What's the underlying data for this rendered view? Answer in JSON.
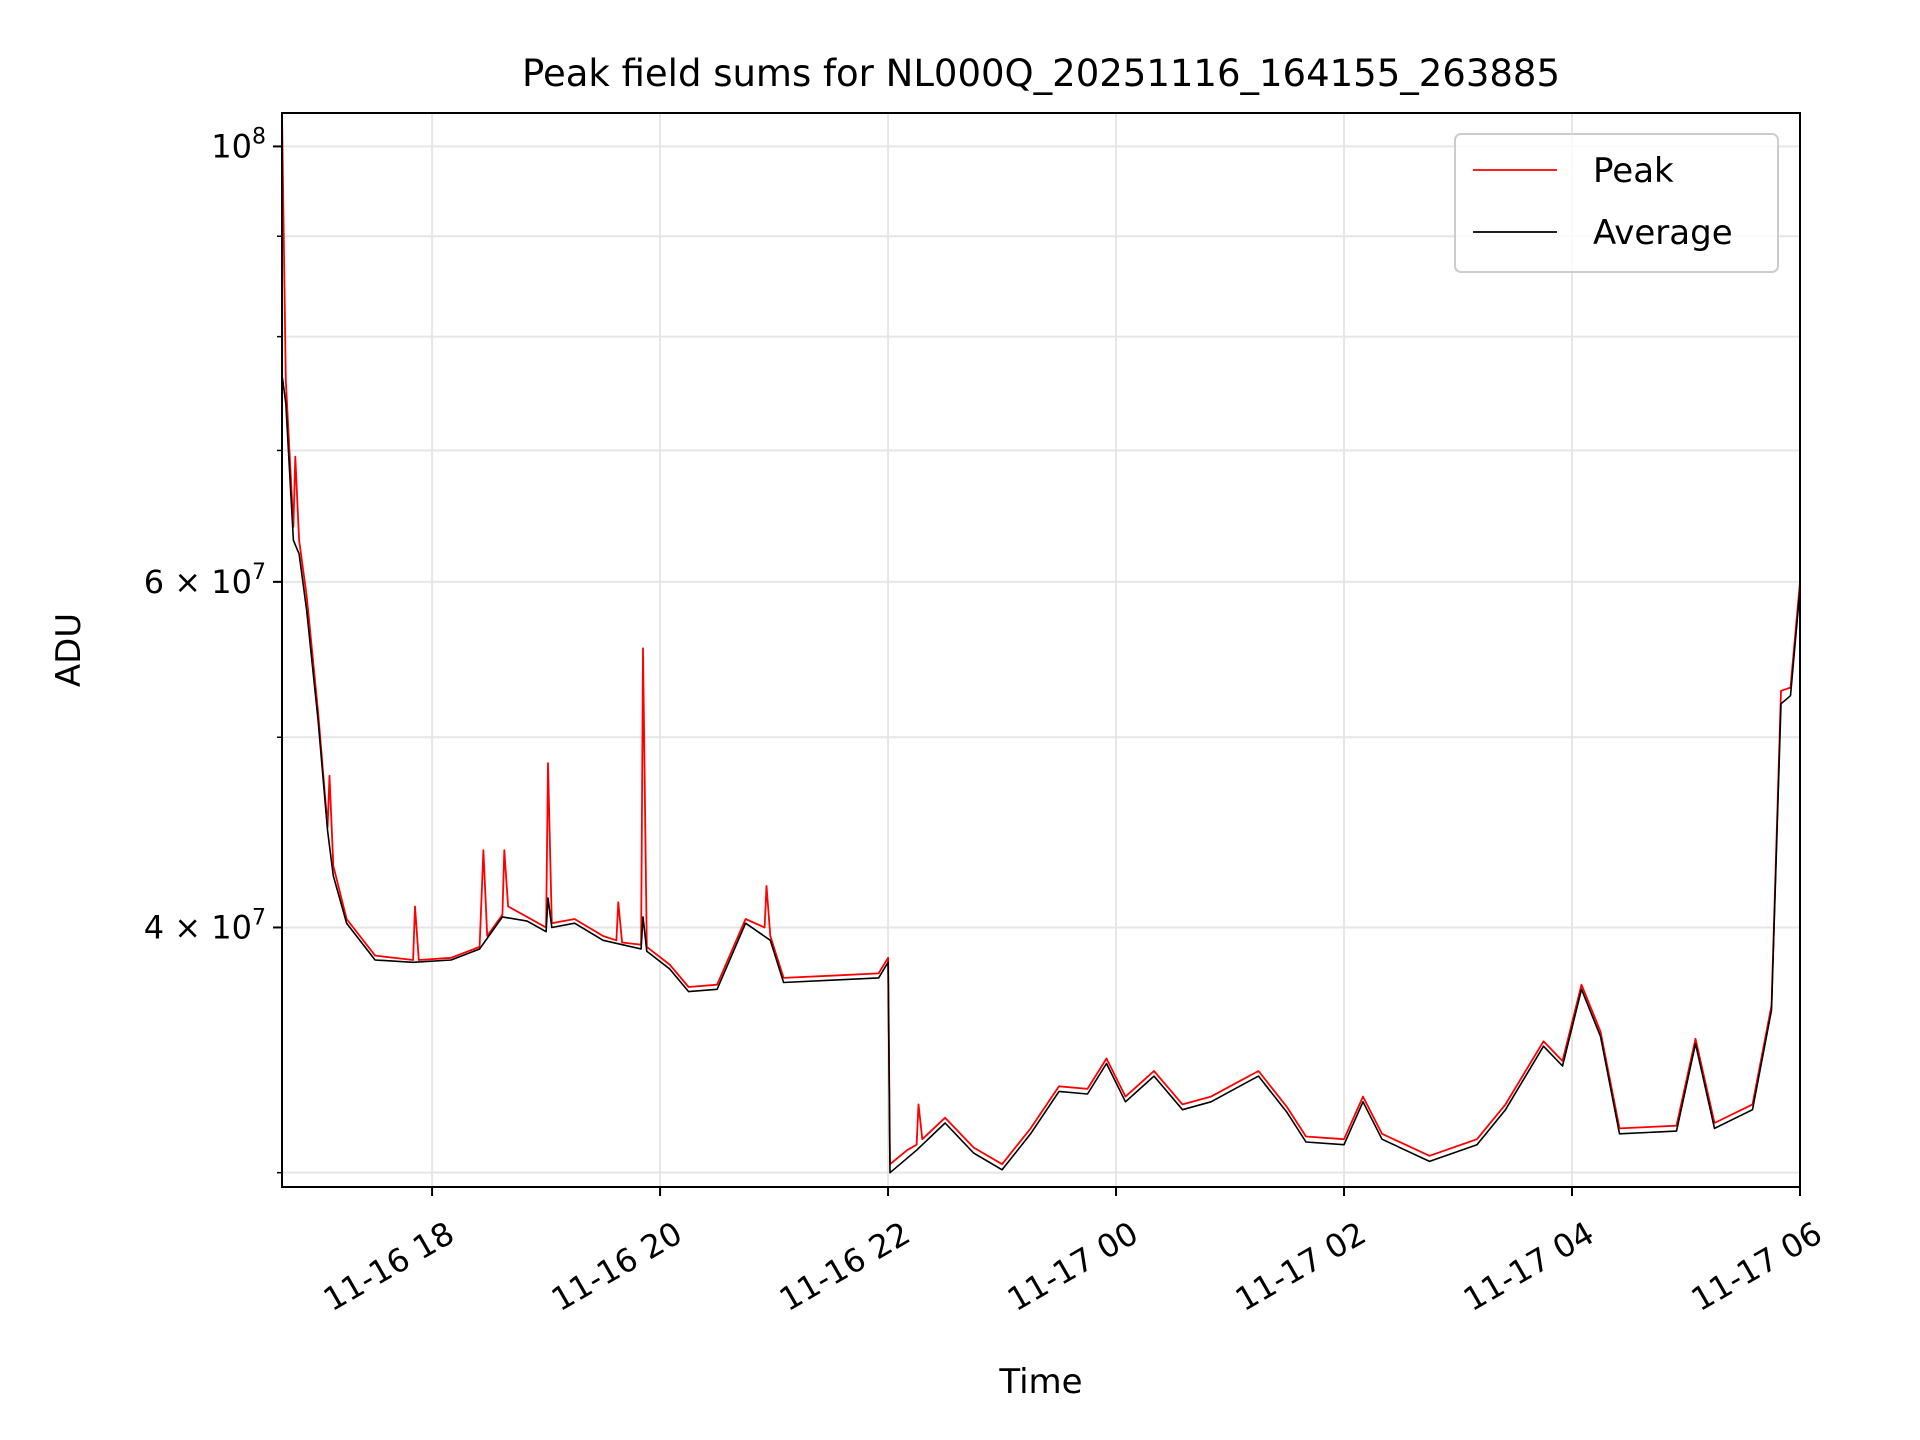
{
  "chart_data": {
    "type": "line",
    "title": "Peak field sums for NL000Q_20251116_164155_263885",
    "xlabel": "Time",
    "ylabel": "ADU",
    "yscale": "log",
    "xlim": [
      "2025-11-16 16:41",
      "2025-11-17 06:00"
    ],
    "ylim": [
      29500000,
      104000000
    ],
    "grid": true,
    "legend_position": "top-right",
    "x_ticks": [
      {
        "value": "2025-11-16 18:00",
        "label": "11-16 18"
      },
      {
        "value": "2025-11-16 20:00",
        "label": "11-16 20"
      },
      {
        "value": "2025-11-16 22:00",
        "label": "11-16 22"
      },
      {
        "value": "2025-11-17 00:00",
        "label": "11-17 00"
      },
      {
        "value": "2025-11-17 02:00",
        "label": "11-17 02"
      },
      {
        "value": "2025-11-17 04:00",
        "label": "11-17 04"
      },
      {
        "value": "2025-11-17 06:00",
        "label": "11-17 06"
      }
    ],
    "y_ticks": [
      {
        "value": 100000000,
        "base": "10",
        "exp": "8",
        "mult": ""
      },
      {
        "value": 60000000,
        "base": "10",
        "exp": "7",
        "mult": "6 × "
      },
      {
        "value": 40000000,
        "base": "10",
        "exp": "7",
        "mult": "4 × "
      }
    ],
    "y_minor_ticks": [
      30000000,
      50000000,
      70000000,
      80000000,
      90000000
    ],
    "series": [
      {
        "name": "Peak",
        "color": "#ff0000",
        "points": [
          [
            "2025-11-16 16:41",
            104000000
          ],
          [
            "2025-11-16 16:43",
            76000000
          ],
          [
            "2025-11-16 16:47",
            64000000
          ],
          [
            "2025-11-16 16:48",
            69500000
          ],
          [
            "2025-11-16 16:50",
            63000000
          ],
          [
            "2025-11-16 16:54",
            59000000
          ],
          [
            "2025-11-16 17:00",
            51500000
          ],
          [
            "2025-11-16 17:05",
            45000000
          ],
          [
            "2025-11-16 17:06",
            47800000
          ],
          [
            "2025-11-16 17:08",
            43000000
          ],
          [
            "2025-11-16 17:15",
            40400000
          ],
          [
            "2025-11-16 17:30",
            38700000
          ],
          [
            "2025-11-16 17:50",
            38500000
          ],
          [
            "2025-11-16 17:51",
            41000000
          ],
          [
            "2025-11-16 17:53",
            38500000
          ],
          [
            "2025-11-16 18:10",
            38600000
          ],
          [
            "2025-11-16 18:25",
            39100000
          ],
          [
            "2025-11-16 18:27",
            43800000
          ],
          [
            "2025-11-16 18:29",
            39600000
          ],
          [
            "2025-11-16 18:37",
            40600000
          ],
          [
            "2025-11-16 18:38",
            43800000
          ],
          [
            "2025-11-16 18:40",
            41000000
          ],
          [
            "2025-11-16 18:50",
            40500000
          ],
          [
            "2025-11-16 19:00",
            40000000
          ],
          [
            "2025-11-16 19:01",
            48500000
          ],
          [
            "2025-11-16 19:03",
            40200000
          ],
          [
            "2025-11-16 19:15",
            40400000
          ],
          [
            "2025-11-16 19:30",
            39600000
          ],
          [
            "2025-11-16 19:37",
            39400000
          ],
          [
            "2025-11-16 19:38",
            41200000
          ],
          [
            "2025-11-16 19:40",
            39300000
          ],
          [
            "2025-11-16 19:50",
            39200000
          ],
          [
            "2025-11-16 19:51",
            55500000
          ],
          [
            "2025-11-16 19:53",
            39100000
          ],
          [
            "2025-11-16 20:05",
            38300000
          ],
          [
            "2025-11-16 20:15",
            37300000
          ],
          [
            "2025-11-16 20:30",
            37400000
          ],
          [
            "2025-11-16 20:45",
            40400000
          ],
          [
            "2025-11-16 20:55",
            40000000
          ],
          [
            "2025-11-16 20:56",
            42000000
          ],
          [
            "2025-11-16 20:58",
            39600000
          ],
          [
            "2025-11-16 21:05",
            37700000
          ],
          [
            "2025-11-16 21:30",
            37800000
          ],
          [
            "2025-11-16 21:55",
            37900000
          ],
          [
            "2025-11-16 22:00",
            38600000
          ],
          [
            "2025-11-16 22:01",
            30300000
          ],
          [
            "2025-11-16 22:10",
            30800000
          ],
          [
            "2025-11-16 22:15",
            31000000
          ],
          [
            "2025-11-16 22:16",
            32500000
          ],
          [
            "2025-11-16 22:18",
            31200000
          ],
          [
            "2025-11-16 22:30",
            32000000
          ],
          [
            "2025-11-16 22:45",
            30900000
          ],
          [
            "2025-11-16 23:00",
            30300000
          ],
          [
            "2025-11-16 23:15",
            31600000
          ],
          [
            "2025-11-16 23:30",
            33200000
          ],
          [
            "2025-11-16 23:45",
            33100000
          ],
          [
            "2025-11-16 23:55",
            34300000
          ],
          [
            "2025-11-17 00:05",
            32800000
          ],
          [
            "2025-11-17 00:20",
            33800000
          ],
          [
            "2025-11-17 00:35",
            32500000
          ],
          [
            "2025-11-17 00:50",
            32800000
          ],
          [
            "2025-11-17 01:05",
            33400000
          ],
          [
            "2025-11-17 01:15",
            33800000
          ],
          [
            "2025-11-17 01:30",
            32400000
          ],
          [
            "2025-11-17 01:40",
            31300000
          ],
          [
            "2025-11-17 02:00",
            31200000
          ],
          [
            "2025-11-17 02:10",
            32800000
          ],
          [
            "2025-11-17 02:20",
            31400000
          ],
          [
            "2025-11-17 02:45",
            30600000
          ],
          [
            "2025-11-17 03:10",
            31200000
          ],
          [
            "2025-11-17 03:25",
            32500000
          ],
          [
            "2025-11-17 03:45",
            35000000
          ],
          [
            "2025-11-17 03:55",
            34200000
          ],
          [
            "2025-11-17 04:05",
            37400000
          ],
          [
            "2025-11-17 04:15",
            35400000
          ],
          [
            "2025-11-17 04:25",
            31600000
          ],
          [
            "2025-11-17 04:55",
            31700000
          ],
          [
            "2025-11-17 05:05",
            35100000
          ],
          [
            "2025-11-17 05:15",
            31800000
          ],
          [
            "2025-11-17 05:35",
            32500000
          ],
          [
            "2025-11-17 05:45",
            36500000
          ],
          [
            "2025-11-17 05:50",
            52800000
          ],
          [
            "2025-11-17 05:55",
            53000000
          ],
          [
            "2025-11-17 06:00",
            60000000
          ]
        ]
      },
      {
        "name": "Average",
        "color": "#000000",
        "points": [
          [
            "2025-11-16 16:41",
            76500000
          ],
          [
            "2025-11-16 16:43",
            74000000
          ],
          [
            "2025-11-16 16:47",
            63000000
          ],
          [
            "2025-11-16 16:50",
            62000000
          ],
          [
            "2025-11-16 16:54",
            58000000
          ],
          [
            "2025-11-16 17:00",
            51000000
          ],
          [
            "2025-11-16 17:05",
            44800000
          ],
          [
            "2025-11-16 17:08",
            42500000
          ],
          [
            "2025-11-16 17:15",
            40200000
          ],
          [
            "2025-11-16 17:30",
            38500000
          ],
          [
            "2025-11-16 17:50",
            38400000
          ],
          [
            "2025-11-16 18:10",
            38500000
          ],
          [
            "2025-11-16 18:25",
            39000000
          ],
          [
            "2025-11-16 18:37",
            40500000
          ],
          [
            "2025-11-16 18:50",
            40300000
          ],
          [
            "2025-11-16 19:00",
            39800000
          ],
          [
            "2025-11-16 19:01",
            41400000
          ],
          [
            "2025-11-16 19:03",
            40000000
          ],
          [
            "2025-11-16 19:15",
            40200000
          ],
          [
            "2025-11-16 19:30",
            39400000
          ],
          [
            "2025-11-16 19:50",
            39000000
          ],
          [
            "2025-11-16 19:51",
            40500000
          ],
          [
            "2025-11-16 19:53",
            38900000
          ],
          [
            "2025-11-16 20:05",
            38100000
          ],
          [
            "2025-11-16 20:15",
            37100000
          ],
          [
            "2025-11-16 20:30",
            37200000
          ],
          [
            "2025-11-16 20:45",
            40200000
          ],
          [
            "2025-11-16 20:58",
            39400000
          ],
          [
            "2025-11-16 21:05",
            37500000
          ],
          [
            "2025-11-16 21:30",
            37600000
          ],
          [
            "2025-11-16 21:55",
            37700000
          ],
          [
            "2025-11-16 22:00",
            38400000
          ],
          [
            "2025-11-16 22:01",
            30000000
          ],
          [
            "2025-11-16 22:15",
            30800000
          ],
          [
            "2025-11-16 22:30",
            31800000
          ],
          [
            "2025-11-16 22:45",
            30700000
          ],
          [
            "2025-11-16 23:00",
            30100000
          ],
          [
            "2025-11-16 23:15",
            31400000
          ],
          [
            "2025-11-16 23:30",
            33000000
          ],
          [
            "2025-11-16 23:45",
            32900000
          ],
          [
            "2025-11-16 23:55",
            34100000
          ],
          [
            "2025-11-17 00:05",
            32600000
          ],
          [
            "2025-11-17 00:20",
            33600000
          ],
          [
            "2025-11-17 00:35",
            32300000
          ],
          [
            "2025-11-17 00:50",
            32600000
          ],
          [
            "2025-11-17 01:05",
            33200000
          ],
          [
            "2025-11-17 01:15",
            33600000
          ],
          [
            "2025-11-17 01:30",
            32200000
          ],
          [
            "2025-11-17 01:40",
            31100000
          ],
          [
            "2025-11-17 02:00",
            31000000
          ],
          [
            "2025-11-17 02:10",
            32600000
          ],
          [
            "2025-11-17 02:20",
            31200000
          ],
          [
            "2025-11-17 02:45",
            30400000
          ],
          [
            "2025-11-17 03:10",
            31000000
          ],
          [
            "2025-11-17 03:25",
            32300000
          ],
          [
            "2025-11-17 03:45",
            34800000
          ],
          [
            "2025-11-17 03:55",
            34000000
          ],
          [
            "2025-11-17 04:05",
            37200000
          ],
          [
            "2025-11-17 04:15",
            35200000
          ],
          [
            "2025-11-17 04:25",
            31400000
          ],
          [
            "2025-11-17 04:55",
            31500000
          ],
          [
            "2025-11-17 05:05",
            34900000
          ],
          [
            "2025-11-17 05:15",
            31600000
          ],
          [
            "2025-11-17 05:35",
            32300000
          ],
          [
            "2025-11-17 05:45",
            36300000
          ],
          [
            "2025-11-17 05:50",
            52000000
          ],
          [
            "2025-11-17 05:55",
            52500000
          ],
          [
            "2025-11-17 06:00",
            59500000
          ]
        ]
      }
    ]
  }
}
